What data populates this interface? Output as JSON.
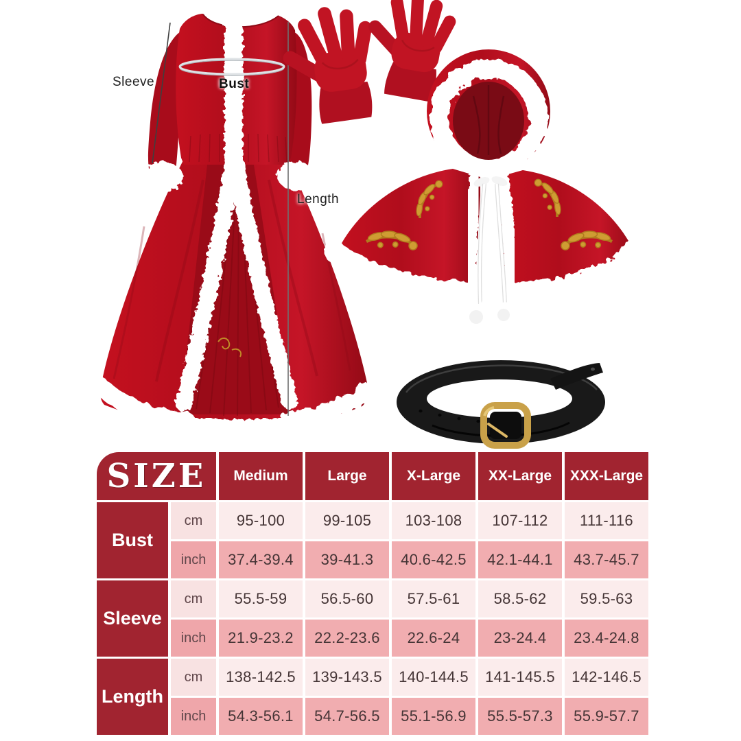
{
  "diagram_labels": {
    "sleeve": "Sleeve",
    "bust": "Bust",
    "length": "Length"
  },
  "chart_data": {
    "type": "table",
    "title": "SIZE",
    "columns": [
      "Medium",
      "Large",
      "X-Large",
      "XX-Large",
      "XXX-Large"
    ],
    "rows": [
      {
        "label": "Bust",
        "units": [
          {
            "unit": "cm",
            "values": [
              "95-100",
              "99-105",
              "103-108",
              "107-112",
              "111-116"
            ]
          },
          {
            "unit": "inch",
            "values": [
              "37.4-39.4",
              "39-41.3",
              "40.6-42.5",
              "42.1-44.1",
              "43.7-45.7"
            ]
          }
        ]
      },
      {
        "label": "Sleeve",
        "units": [
          {
            "unit": "cm",
            "values": [
              "55.5-59",
              "56.5-60",
              "57.5-61",
              "58.5-62",
              "59.5-63"
            ]
          },
          {
            "unit": "inch",
            "values": [
              "21.9-23.2",
              "22.2-23.6",
              "22.6-24",
              "23-24.4",
              "23.4-24.8"
            ]
          }
        ]
      },
      {
        "label": "Length",
        "units": [
          {
            "unit": "cm",
            "values": [
              "138-142.5",
              "139-143.5",
              "140-144.5",
              "141-145.5",
              "142-146.5"
            ]
          },
          {
            "unit": "inch",
            "values": [
              "54.3-56.1",
              "54.7-56.5",
              "55.1-56.9",
              "55.5-57.3",
              "55.9-57.7"
            ]
          }
        ]
      }
    ]
  },
  "colors": {
    "table_header_red": "#a12430",
    "row_light_pink": "#fbecec",
    "row_dark_pink": "#f1adb0",
    "costume_red": "#b80d1f",
    "hood_inner_red": "#7a0b15",
    "fur_white": "#ffffff",
    "embroidery_gold": "#c9992f",
    "belt_black": "#191919",
    "buckle_gold": "#c9a149"
  }
}
